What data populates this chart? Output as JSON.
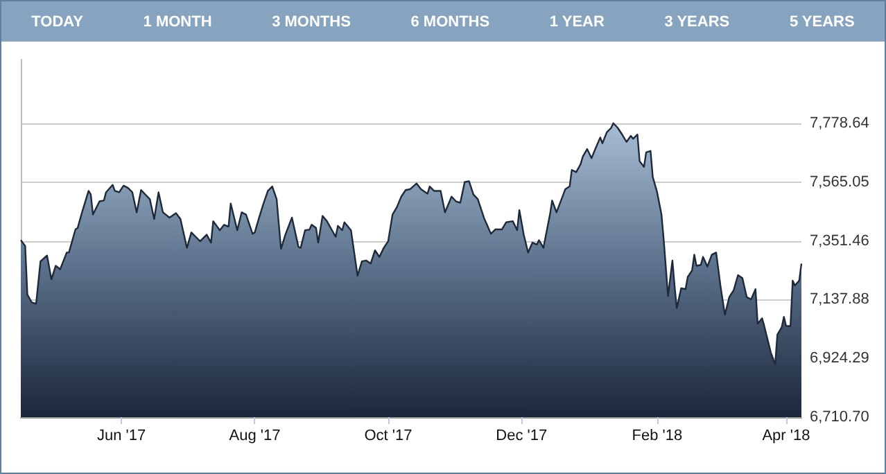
{
  "chart_data": {
    "type": "area",
    "annotations": [
      "TODAY",
      "1 MONTH",
      "3 MONTHS",
      "6 MONTHS",
      "1 YEAR",
      "3 YEARS",
      "5 YEARS"
    ],
    "x": [
      "2017-04-16",
      "2017-04-18",
      "2017-04-19",
      "2017-04-21",
      "2017-04-23",
      "2017-04-25",
      "2017-04-28",
      "2017-04-30",
      "2017-05-02",
      "2017-05-04",
      "2017-05-07",
      "2017-05-08",
      "2017-05-11",
      "2017-05-12",
      "2017-05-14",
      "2017-05-17",
      "2017-05-18",
      "2017-05-19",
      "2017-05-22",
      "2017-05-24",
      "2017-05-25",
      "2017-05-28",
      "2017-05-29",
      "2017-05-31",
      "2017-06-02",
      "2017-06-04",
      "2017-06-06",
      "2017-06-08",
      "2017-06-10",
      "2017-06-14",
      "2017-06-16",
      "2017-06-18",
      "2017-06-20",
      "2017-06-23",
      "2017-06-26",
      "2017-06-28",
      "2017-07-01",
      "2017-07-03",
      "2017-07-05",
      "2017-07-07",
      "2017-07-10",
      "2017-07-12",
      "2017-07-13",
      "2017-07-16",
      "2017-07-18",
      "2017-07-20",
      "2017-07-21",
      "2017-07-24",
      "2017-07-26",
      "2017-07-28",
      "2017-07-31",
      "2017-08-01",
      "2017-08-03",
      "2017-08-05",
      "2017-08-07",
      "2017-08-09",
      "2017-08-11",
      "2017-08-13",
      "2017-08-15",
      "2017-08-18",
      "2017-08-21",
      "2017-08-22",
      "2017-08-24",
      "2017-08-26",
      "2017-08-27",
      "2017-08-29",
      "2017-08-30",
      "2017-09-01",
      "2017-09-03",
      "2017-09-07",
      "2017-09-08",
      "2017-09-10",
      "2017-09-11",
      "2017-09-14",
      "2017-09-17",
      "2017-09-19",
      "2017-09-21",
      "2017-09-23",
      "2017-09-25",
      "2017-09-27",
      "2017-09-29",
      "2017-10-01",
      "2017-10-03",
      "2017-10-05",
      "2017-10-07",
      "2017-10-09",
      "2017-10-11",
      "2017-10-14",
      "2017-10-16",
      "2017-10-19",
      "2017-10-20",
      "2017-10-22",
      "2017-10-25",
      "2017-10-27",
      "2017-10-30",
      "2017-11-01",
      "2017-11-03",
      "2017-11-05",
      "2017-11-07",
      "2017-11-09",
      "2017-11-11",
      "2017-11-14",
      "2017-11-15",
      "2017-11-17",
      "2017-11-19",
      "2017-11-22",
      "2017-11-24",
      "2017-11-27",
      "2017-11-29",
      "2017-11-30",
      "2017-12-02",
      "2017-12-04",
      "2017-12-06",
      "2017-12-08",
      "2017-12-09",
      "2017-12-11",
      "2017-12-14",
      "2017-12-15",
      "2017-12-17",
      "2017-12-21",
      "2017-12-23",
      "2017-12-24",
      "2017-12-26",
      "2017-12-28",
      "2017-12-29",
      "2017-12-31",
      "2018-01-02",
      "2018-01-04",
      "2018-01-06",
      "2018-01-07",
      "2018-01-09",
      "2018-01-11",
      "2018-01-12",
      "2018-01-14",
      "2018-01-16",
      "2018-01-18",
      "2018-01-20",
      "2018-01-21",
      "2018-01-23",
      "2018-01-24",
      "2018-01-26",
      "2018-01-27",
      "2018-01-29",
      "2018-01-30",
      "2018-02-01",
      "2018-02-03",
      "2018-02-04",
      "2018-02-06",
      "2018-02-08",
      "2018-02-09",
      "2018-02-10",
      "2018-02-12",
      "2018-02-14",
      "2018-02-15",
      "2018-02-17",
      "2018-02-18",
      "2018-02-19",
      "2018-02-21",
      "2018-02-22",
      "2018-02-24",
      "2018-02-26",
      "2018-02-28",
      "2018-03-02",
      "2018-03-04",
      "2018-03-06",
      "2018-03-08",
      "2018-03-10",
      "2018-03-12",
      "2018-03-14",
      "2018-03-16",
      "2018-03-18",
      "2018-03-19",
      "2018-03-21",
      "2018-03-22",
      "2018-03-24",
      "2018-03-25",
      "2018-03-27",
      "2018-03-28",
      "2018-03-30",
      "2018-03-31",
      "2018-04-01",
      "2018-04-03",
      "2018-04-04",
      "2018-04-05",
      "2018-04-07",
      "2018-04-08"
    ],
    "values": [
      7354,
      7333,
      7156,
      7128,
      7123,
      7277,
      7298,
      7212,
      7261,
      7248,
      7309,
      7309,
      7393,
      7398,
      7455,
      7533,
      7520,
      7447,
      7495,
      7498,
      7528,
      7555,
      7533,
      7528,
      7552,
      7544,
      7528,
      7455,
      7536,
      7503,
      7431,
      7528,
      7455,
      7436,
      7452,
      7431,
      7326,
      7382,
      7366,
      7350,
      7374,
      7345,
      7423,
      7390,
      7410,
      7403,
      7487,
      7390,
      7455,
      7447,
      7377,
      7382,
      7436,
      7487,
      7533,
      7549,
      7503,
      7322,
      7374,
      7436,
      7329,
      7326,
      7390,
      7392,
      7410,
      7399,
      7345,
      7442,
      7423,
      7366,
      7406,
      7390,
      7419,
      7390,
      7225,
      7277,
      7280,
      7269,
      7317,
      7293,
      7326,
      7350,
      7447,
      7474,
      7512,
      7536,
      7539,
      7560,
      7539,
      7523,
      7549,
      7533,
      7533,
      7455,
      7512,
      7495,
      7490,
      7565,
      7568,
      7520,
      7503,
      7431,
      7414,
      7377,
      7393,
      7393,
      7419,
      7423,
      7390,
      7463,
      7374,
      7309,
      7345,
      7338,
      7354,
      7326,
      7447,
      7498,
      7455,
      7539,
      7549,
      7609,
      7601,
      7630,
      7657,
      7685,
      7652,
      7690,
      7727,
      7706,
      7746,
      7762,
      7779,
      7762,
      7738,
      7711,
      7733,
      7722,
      7738,
      7641,
      7620,
      7673,
      7678,
      7584,
      7528,
      7447,
      7358,
      7151,
      7280,
      7187,
      7107,
      7179,
      7176,
      7220,
      7244,
      7301,
      7261,
      7264,
      7293,
      7258,
      7301,
      7309,
      7187,
      7083,
      7147,
      7172,
      7227,
      7216,
      7147,
      7139,
      7176,
      7050,
      7070,
      7042,
      6978,
      6946,
      6902,
      7011,
      7038,
      7075,
      7042,
      7042,
      7207,
      7189,
      7207,
      7269
    ],
    "color": "#1e2a3a",
    "xlim": [
      "2017-04-16",
      "2018-04-08"
    ],
    "xticks": [
      {
        "value": "2017-06-01",
        "label": "Jun '17"
      },
      {
        "value": "2017-08-01",
        "label": "Aug '17"
      },
      {
        "value": "2017-10-01",
        "label": "Oct '17"
      },
      {
        "value": "2017-12-01",
        "label": "Dec '17"
      },
      {
        "value": "2018-02-01",
        "label": "Feb '18"
      },
      {
        "value": "2018-04-01",
        "label": "Apr '18"
      }
    ],
    "ylim": [
      6710.7,
      8010
    ],
    "yticks": [
      {
        "value": 6710.7,
        "label": "6,710.70"
      },
      {
        "value": 6924.29,
        "label": "6,924.29"
      },
      {
        "value": 7137.88,
        "label": "7,137.88"
      },
      {
        "value": 7351.46,
        "label": "7,351.46"
      },
      {
        "value": 7565.05,
        "label": "7,565.05"
      },
      {
        "value": 7778.64,
        "label": "7,778.64"
      }
    ],
    "grid": "y",
    "marker": "none",
    "line_style": "solid"
  }
}
